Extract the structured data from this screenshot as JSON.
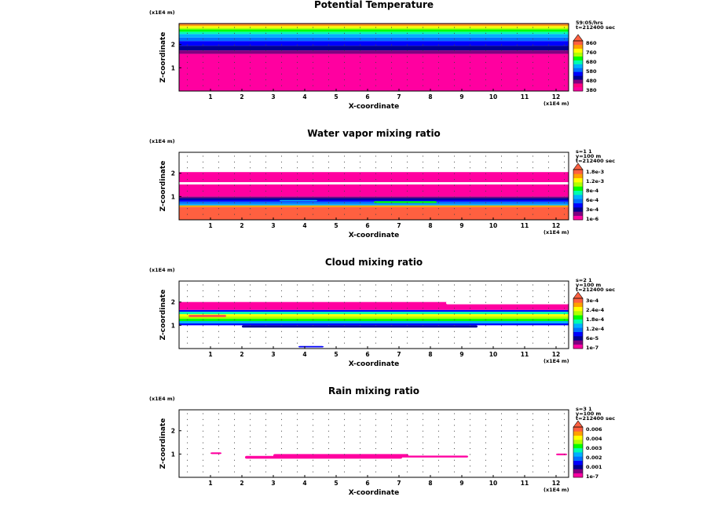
{
  "chart_data": [
    {
      "type": "heatmap",
      "title": "Potential Temperature",
      "xlabel": "X-coordinate",
      "ylabel": "Z-coordinate",
      "x_unit": "(x1E4 m)",
      "y_unit": "(x1E4 m)",
      "xlim": [
        0,
        12.4
      ],
      "ylim": [
        0,
        2.9
      ],
      "x_ticks": [
        "1",
        "2",
        "3",
        "4",
        "5",
        "6",
        "7",
        "8",
        "9",
        "10",
        "11",
        "12"
      ],
      "y_ticks": [
        "1",
        "2"
      ],
      "info": [
        "59:05/hrs",
        "t=212400 sec"
      ],
      "colorbar": {
        "labels": [
          "860",
          "760",
          "680",
          "580",
          "480",
          "380"
        ],
        "colors": [
          "#ff00a0",
          "#ff0080",
          "#800080",
          "#000090",
          "#0000ff",
          "#0070ff",
          "#00b0ff",
          "#00ffb0",
          "#00ff00",
          "#b0ff00",
          "#ffff00",
          "#ffa000",
          "#ff6040"
        ]
      },
      "layers": [
        {
          "z0": 0.0,
          "z1": 1.6,
          "color": "#ff00a0"
        },
        {
          "z0": 1.6,
          "z1": 1.75,
          "color": "#800080"
        },
        {
          "z0": 1.75,
          "z1": 1.95,
          "color": "#000090"
        },
        {
          "z0": 1.95,
          "z1": 2.15,
          "color": "#0000ff"
        },
        {
          "z0": 2.15,
          "z1": 2.3,
          "color": "#0070ff"
        },
        {
          "z0": 2.3,
          "z1": 2.45,
          "color": "#00b0ff"
        },
        {
          "z0": 2.45,
          "z1": 2.55,
          "color": "#00ffb0"
        },
        {
          "z0": 2.55,
          "z1": 2.65,
          "color": "#00ff00"
        },
        {
          "z0": 2.65,
          "z1": 2.72,
          "color": "#b0ff00"
        },
        {
          "z0": 2.72,
          "z1": 2.79,
          "color": "#ffff00"
        },
        {
          "z0": 2.79,
          "z1": 2.86,
          "color": "#ffa000"
        },
        {
          "z0": 2.86,
          "z1": 2.9,
          "color": "#ff6040"
        }
      ],
      "blobs": []
    },
    {
      "type": "heatmap",
      "title": "Water vapor mixing ratio",
      "xlabel": "X-coordinate",
      "ylabel": "Z-coordinate",
      "x_unit": "(x1E4 m)",
      "y_unit": "(x1E4 m)",
      "xlim": [
        0,
        12.4
      ],
      "ylim": [
        0,
        2.9
      ],
      "x_ticks": [
        "1",
        "2",
        "3",
        "4",
        "5",
        "6",
        "7",
        "8",
        "9",
        "10",
        "11",
        "12"
      ],
      "y_ticks": [
        "1",
        "2"
      ],
      "info": [
        "s=1 1",
        "y=100 m",
        "t=212400 sec"
      ],
      "colorbar": {
        "labels": [
          "1.8e-3",
          "1.2e-3",
          "8e-4",
          "6e-4",
          "3e-4",
          "1e-6"
        ],
        "colors": [
          "#ff00a0",
          "#800080",
          "#000090",
          "#0000ff",
          "#0070ff",
          "#00b0ff",
          "#00ffb0",
          "#00ff00",
          "#b0ff00",
          "#ffff00",
          "#ffa000",
          "#ff6040"
        ]
      },
      "layers": [
        {
          "z0": 0.0,
          "z1": 0.55,
          "color": "#ff6040"
        },
        {
          "z0": 0.55,
          "z1": 0.62,
          "color": "#ffa000"
        },
        {
          "z0": 0.62,
          "z1": 0.68,
          "color": "#00b0ff"
        },
        {
          "z0": 0.68,
          "z1": 0.78,
          "color": "#0070ff"
        },
        {
          "z0": 0.78,
          "z1": 0.86,
          "color": "#0000ff"
        },
        {
          "z0": 0.86,
          "z1": 0.94,
          "color": "#000090"
        },
        {
          "z0": 0.94,
          "z1": 1.0,
          "color": "#800080"
        },
        {
          "z0": 1.0,
          "z1": 1.52,
          "color": "#ff00a0"
        },
        {
          "z0": 1.52,
          "z1": 1.62,
          "color": "#ffffff"
        },
        {
          "z0": 1.62,
          "z1": 2.05,
          "color": "#ff00a0"
        }
      ],
      "blobs": [
        {
          "x": 6.2,
          "z": 0.72,
          "w": 2.0,
          "h": 0.08,
          "color": "#00ff00"
        },
        {
          "x": 3.2,
          "z": 0.8,
          "w": 1.2,
          "h": 0.05,
          "color": "#00b0ff"
        }
      ]
    },
    {
      "type": "heatmap",
      "title": "Cloud mixing ratio",
      "xlabel": "X-coordinate",
      "ylabel": "Z-coordinate",
      "x_unit": "(x1E4 m)",
      "y_unit": "(x1E4 m)",
      "xlim": [
        0,
        12.4
      ],
      "ylim": [
        0,
        2.9
      ],
      "x_ticks": [
        "1",
        "2",
        "3",
        "4",
        "5",
        "6",
        "7",
        "8",
        "9",
        "10",
        "11",
        "12"
      ],
      "y_ticks": [
        "1",
        "2"
      ],
      "info": [
        "s=2 1",
        "y=100 m",
        "t=212400 sec"
      ],
      "colorbar": {
        "labels": [
          "3e-4",
          "2.4e-4",
          "1.8e-4",
          "1.2e-4",
          "6e-5",
          "1e-7"
        ],
        "colors": [
          "#ff00a0",
          "#800080",
          "#000090",
          "#0000ff",
          "#0070ff",
          "#00b0ff",
          "#00ffb0",
          "#00ff00",
          "#b0ff00",
          "#ffff00",
          "#ffa000",
          "#ff6040"
        ]
      },
      "layers": [
        {
          "z0": 1.0,
          "z1": 1.08,
          "color": "#0000ff"
        },
        {
          "z0": 1.08,
          "z1": 1.18,
          "color": "#00b0ff"
        },
        {
          "z0": 1.18,
          "z1": 1.28,
          "color": "#00ff00"
        },
        {
          "z0": 1.28,
          "z1": 1.38,
          "color": "#b0ff00"
        },
        {
          "z0": 1.38,
          "z1": 1.48,
          "color": "#ffff00"
        },
        {
          "z0": 1.48,
          "z1": 1.58,
          "color": "#00ffb0"
        },
        {
          "z0": 1.58,
          "z1": 1.66,
          "color": "#0000ff"
        },
        {
          "z0": 1.66,
          "z1": 2.0,
          "color": "#ff00a0"
        }
      ],
      "blobs": [
        {
          "x": 0.3,
          "z": 1.35,
          "w": 1.2,
          "h": 0.1,
          "color": "#ff6040"
        },
        {
          "x": 2.0,
          "z": 0.9,
          "w": 7.5,
          "h": 0.1,
          "color": "#000090"
        },
        {
          "x": 3.8,
          "z": 0.05,
          "w": 0.8,
          "h": 0.06,
          "color": "#0000ff"
        },
        {
          "x": 8.5,
          "z": 1.9,
          "w": 3.9,
          "h": 0.12,
          "color": "#ffffff"
        }
      ]
    },
    {
      "type": "heatmap",
      "title": "Rain mixing ratio",
      "xlabel": "X-coordinate",
      "ylabel": "Z-coordinate",
      "x_unit": "(x1E4 m)",
      "y_unit": "(x1E4 m)",
      "xlim": [
        0,
        12.4
      ],
      "ylim": [
        0,
        2.9
      ],
      "x_ticks": [
        "1",
        "2",
        "3",
        "4",
        "5",
        "6",
        "7",
        "8",
        "9",
        "10",
        "11",
        "12"
      ],
      "y_ticks": [
        "1",
        "2"
      ],
      "info": [
        "s=3 1",
        "y=100 m",
        "t=212400 sec"
      ],
      "colorbar": {
        "labels": [
          "0.006",
          "0.004",
          "0.003",
          "0.002",
          "0.001",
          "1e-7"
        ],
        "colors": [
          "#ff00a0",
          "#800080",
          "#000090",
          "#0000ff",
          "#0070ff",
          "#00b0ff",
          "#00ffb0",
          "#00ff00",
          "#b0ff00",
          "#ffff00",
          "#ffa000",
          "#ff6040"
        ]
      },
      "layers": [],
      "blobs": [
        {
          "x": 1.0,
          "z": 1.0,
          "w": 0.35,
          "h": 0.07,
          "color": "#ff00a0"
        },
        {
          "x": 2.1,
          "z": 0.8,
          "w": 5.0,
          "h": 0.12,
          "color": "#ff00a0"
        },
        {
          "x": 3.0,
          "z": 0.88,
          "w": 4.3,
          "h": 0.12,
          "color": "#ff00a0"
        },
        {
          "x": 7.0,
          "z": 0.85,
          "w": 2.2,
          "h": 0.08,
          "color": "#ff00a0"
        },
        {
          "x": 12.0,
          "z": 0.95,
          "w": 0.35,
          "h": 0.07,
          "color": "#ff00a0"
        }
      ]
    }
  ]
}
